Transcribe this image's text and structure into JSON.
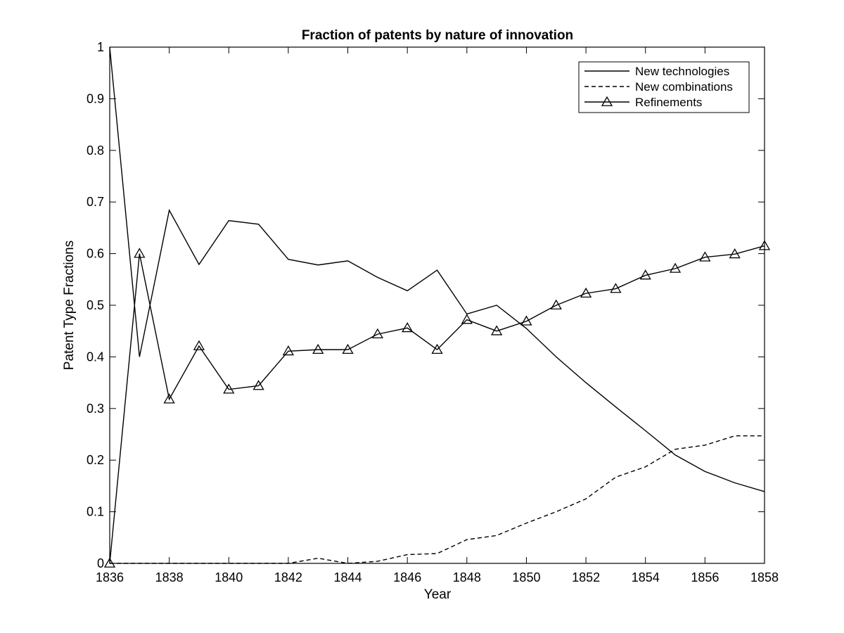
{
  "chart_data": {
    "type": "line",
    "title": "Fraction of patents by nature of innovation",
    "xlabel": "Year",
    "ylabel": "Patent Type Fractions",
    "xlim": [
      1836,
      1858
    ],
    "ylim": [
      0,
      1
    ],
    "xticks": [
      1836,
      1838,
      1840,
      1842,
      1844,
      1846,
      1848,
      1850,
      1852,
      1854,
      1856,
      1858
    ],
    "yticks": [
      0,
      0.1,
      0.2,
      0.3,
      0.4,
      0.5,
      0.6,
      0.7,
      0.8,
      0.9,
      1
    ],
    "ytick_labels": [
      "0",
      "0.1",
      "0.2",
      "0.3",
      "0.4",
      "0.5",
      "0.6",
      "0.7",
      "0.8",
      "0.9",
      "1"
    ],
    "grid": false,
    "legend_position": "top-right",
    "x": [
      1836,
      1837,
      1838,
      1839,
      1840,
      1841,
      1842,
      1843,
      1844,
      1845,
      1846,
      1847,
      1848,
      1849,
      1850,
      1851,
      1852,
      1853,
      1854,
      1855,
      1856,
      1857,
      1858
    ],
    "series": [
      {
        "name": "New technologies",
        "style": "solid",
        "marker": "none",
        "values": [
          1.0,
          0.4,
          0.684,
          0.579,
          0.664,
          0.657,
          0.589,
          0.578,
          0.586,
          0.554,
          0.528,
          0.568,
          0.483,
          0.5,
          0.455,
          0.4,
          0.35,
          0.303,
          0.257,
          0.21,
          0.178,
          0.156,
          0.139
        ]
      },
      {
        "name": "New combinations",
        "style": "dashed",
        "marker": "none",
        "values": [
          0,
          0,
          0,
          0,
          0,
          0,
          0,
          0.01,
          0,
          0.004,
          0.017,
          0.019,
          0.046,
          0.054,
          0.078,
          0.1,
          0.125,
          0.167,
          0.187,
          0.221,
          0.229,
          0.247,
          0.247
        ]
      },
      {
        "name": "Refinements",
        "style": "solid",
        "marker": "triangle",
        "values": [
          0,
          0.6,
          0.318,
          0.421,
          0.337,
          0.344,
          0.411,
          0.414,
          0.414,
          0.444,
          0.456,
          0.414,
          0.472,
          0.45,
          0.469,
          0.5,
          0.523,
          0.532,
          0.558,
          0.571,
          0.593,
          0.599,
          0.615
        ]
      }
    ]
  }
}
